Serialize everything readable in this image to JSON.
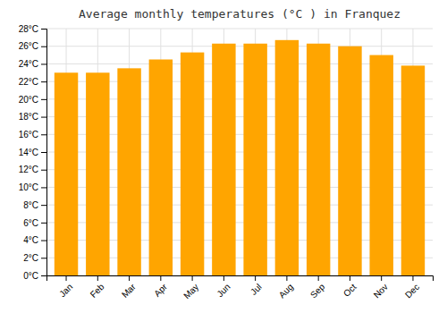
{
  "chart_data": {
    "type": "bar",
    "title": "Average monthly temperatures (°C ) in Franquez",
    "categories": [
      "Jan",
      "Feb",
      "Mar",
      "Apr",
      "May",
      "Jun",
      "Jul",
      "Aug",
      "Sep",
      "Oct",
      "Nov",
      "Dec"
    ],
    "values": [
      23.0,
      23.0,
      23.5,
      24.5,
      25.3,
      26.3,
      26.3,
      26.7,
      26.3,
      26.0,
      25.0,
      23.8
    ],
    "color": "#FFA500",
    "ylim": [
      0,
      28
    ],
    "yticks": [
      {
        "value": 0,
        "label": "0°C"
      },
      {
        "value": 2,
        "label": "2°C"
      },
      {
        "value": 4,
        "label": "4°C"
      },
      {
        "value": 6,
        "label": "6°C"
      },
      {
        "value": 8,
        "label": "8°C"
      },
      {
        "value": 10,
        "label": "10°C"
      },
      {
        "value": 12,
        "label": "12°C"
      },
      {
        "value": 14,
        "label": "14°C"
      },
      {
        "value": 16,
        "label": "16°C"
      },
      {
        "value": 18,
        "label": "18°C"
      },
      {
        "value": 20,
        "label": "20°C"
      },
      {
        "value": 22,
        "label": "22°C"
      },
      {
        "value": 24,
        "label": "24°C"
      },
      {
        "value": 26,
        "label": "26°C"
      },
      {
        "value": 28,
        "label": "28°C"
      }
    ],
    "grid": true
  }
}
